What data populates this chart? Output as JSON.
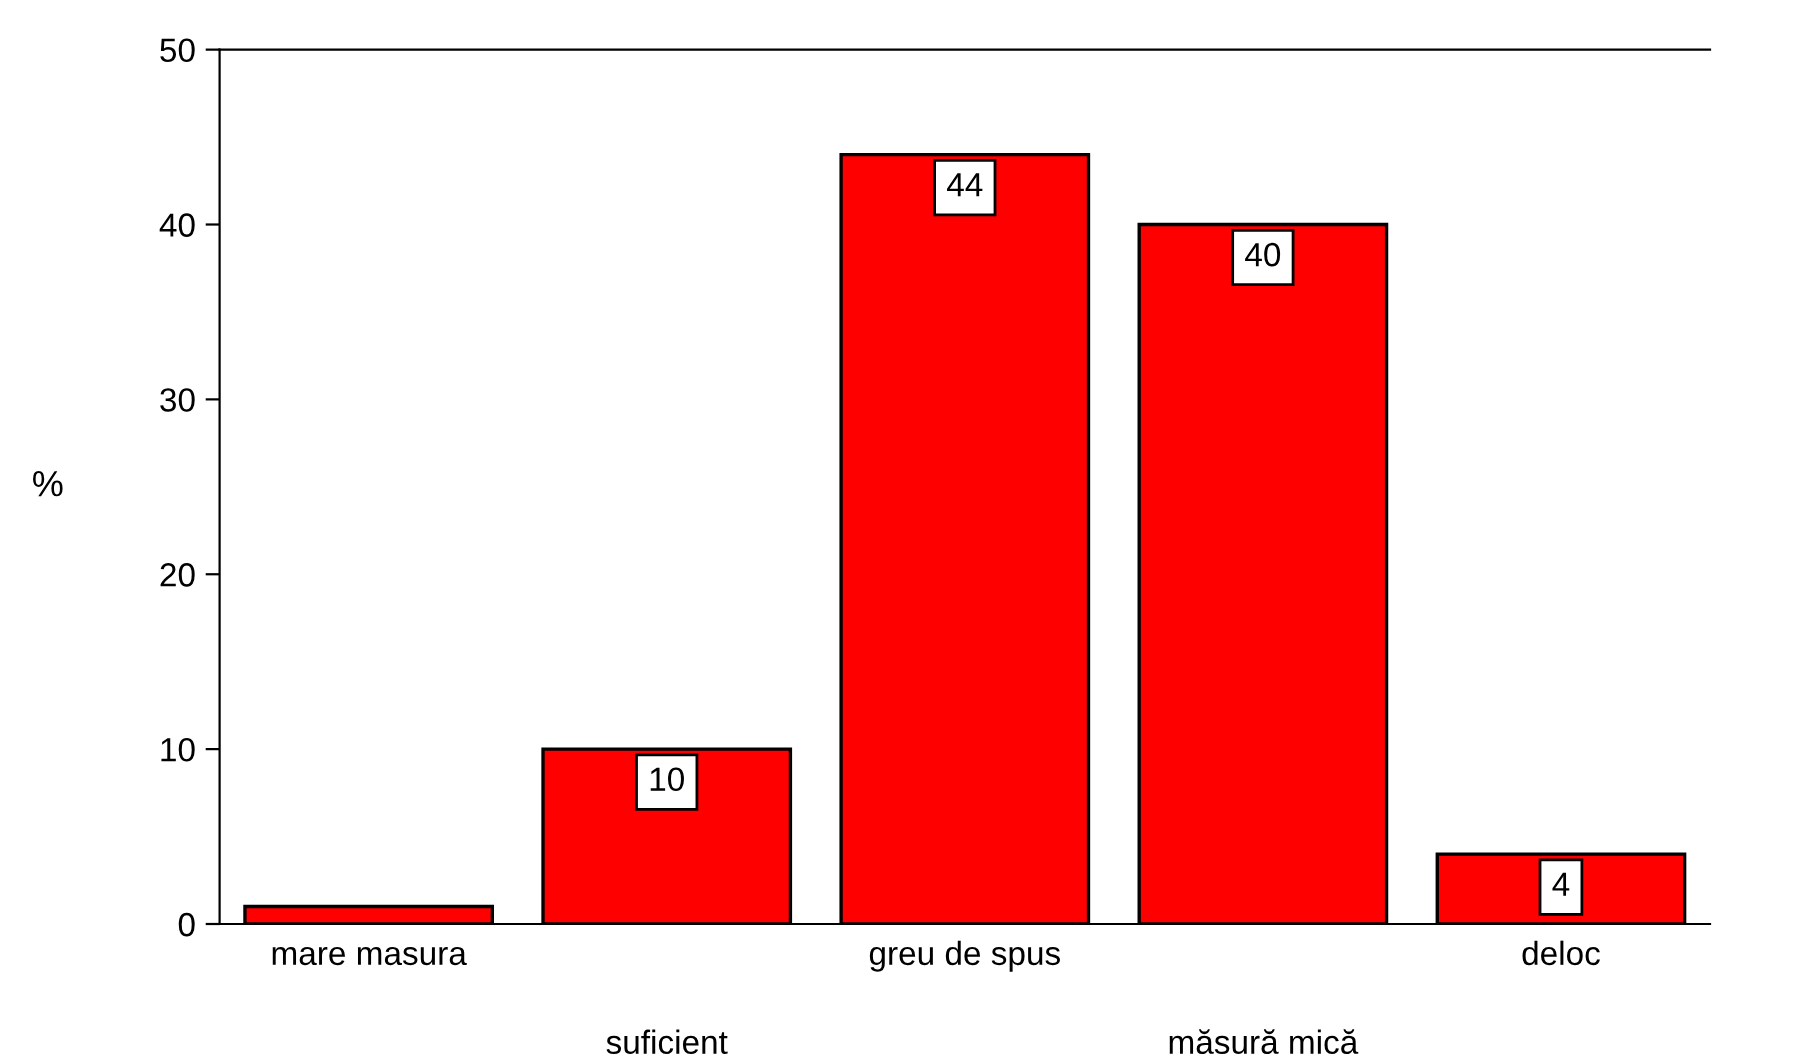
{
  "chart_data": {
    "type": "bar",
    "ylabel": "%",
    "categories": [
      "mare masura",
      "suficient",
      "greu de spus",
      "măsură mică",
      "deloc"
    ],
    "values": [
      1,
      10,
      44,
      40,
      4
    ],
    "value_labels": [
      null,
      "10",
      "44",
      "40",
      "4"
    ],
    "color": "#ff0000",
    "ylim": [
      0,
      50
    ],
    "yticks": [
      0,
      10,
      20,
      30,
      40,
      50
    ],
    "grid": false,
    "legend": false
  }
}
